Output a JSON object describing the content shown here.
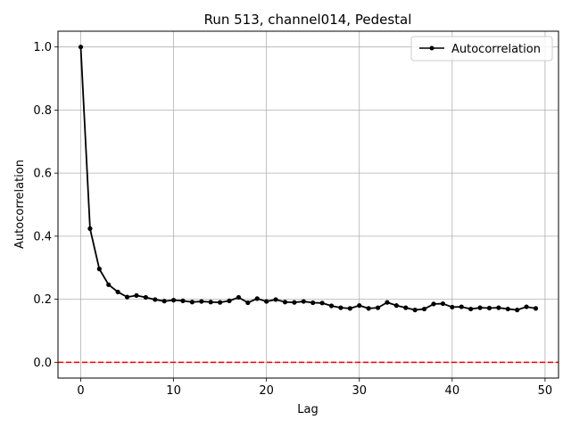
{
  "chart_data": {
    "type": "line",
    "title": "Run 513, channel014, Pedestal",
    "xlabel": "Lag",
    "ylabel": "Autocorrelation",
    "xlim": [
      -2.45,
      51.45
    ],
    "ylim": [
      -0.05,
      1.05
    ],
    "xticks": [
      0,
      10,
      20,
      30,
      40,
      50
    ],
    "yticks": [
      0.0,
      0.2,
      0.4,
      0.6,
      0.8,
      1.0
    ],
    "xtick_labels": [
      "0",
      "10",
      "20",
      "30",
      "40",
      "50"
    ],
    "ytick_labels": [
      "0.0",
      "0.2",
      "0.4",
      "0.6",
      "0.8",
      "1.0"
    ],
    "grid": true,
    "legend_position": "top-right",
    "series": [
      {
        "name": "Autocorrelation",
        "color": "#000000",
        "marker": "circle",
        "x": [
          0,
          1,
          2,
          3,
          4,
          5,
          6,
          7,
          8,
          9,
          10,
          11,
          12,
          13,
          14,
          15,
          16,
          17,
          18,
          19,
          20,
          21,
          22,
          23,
          24,
          25,
          26,
          27,
          28,
          29,
          30,
          31,
          32,
          33,
          34,
          35,
          36,
          37,
          38,
          39,
          40,
          41,
          42,
          43,
          44,
          45,
          46,
          47,
          48,
          49
        ],
        "y": [
          1.0,
          0.424,
          0.296,
          0.246,
          0.223,
          0.207,
          0.212,
          0.206,
          0.199,
          0.194,
          0.197,
          0.195,
          0.191,
          0.193,
          0.191,
          0.19,
          0.195,
          0.206,
          0.189,
          0.202,
          0.193,
          0.199,
          0.191,
          0.19,
          0.193,
          0.189,
          0.188,
          0.179,
          0.173,
          0.171,
          0.18,
          0.171,
          0.173,
          0.19,
          0.18,
          0.173,
          0.166,
          0.169,
          0.185,
          0.186,
          0.175,
          0.176,
          0.169,
          0.173,
          0.172,
          0.173,
          0.169,
          0.166,
          0.176,
          0.171
        ]
      }
    ],
    "reference_line": {
      "y": 0.0,
      "color": "#ff0000",
      "style": "dashed"
    }
  }
}
